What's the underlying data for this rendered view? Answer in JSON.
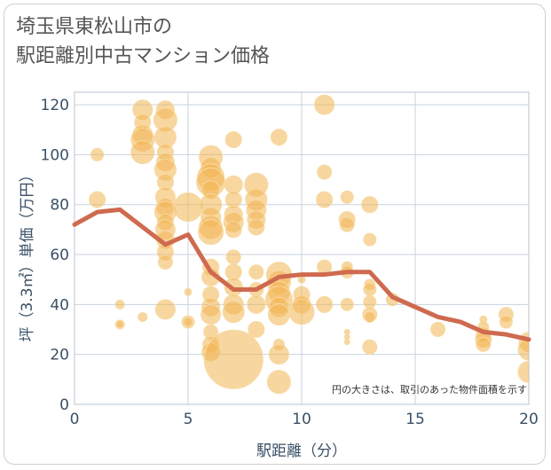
{
  "chart_data": {
    "type": "scatter",
    "title": [
      "埼玉県東松山市の",
      "駅距離別中古マンション価格"
    ],
    "xlabel": "駅距離（分）",
    "ylabel": "坪（3.3㎡）単価（万円）",
    "xlim": [
      0,
      20
    ],
    "ylim": [
      0,
      125
    ],
    "xticks": [
      0,
      5,
      10,
      15,
      20
    ],
    "yticks": [
      0,
      20,
      40,
      60,
      80,
      100,
      120
    ],
    "grid": true,
    "note": "円の大きさは、取引のあった物件面積を示す",
    "colors": {
      "bubble": "#f2b552",
      "bubble_edge": "#f7d9a0",
      "line": "#cf6a4f",
      "grid": "#c8d3de",
      "axis_text": "#3a5066"
    },
    "line_series": {
      "x": [
        0,
        1,
        2,
        3,
        4,
        5,
        6,
        7,
        8,
        9,
        10,
        11,
        12,
        13,
        14,
        15,
        16,
        17,
        18,
        19,
        20
      ],
      "y": [
        72,
        77,
        78,
        71,
        64,
        68,
        53,
        46,
        46,
        51,
        52,
        52,
        53,
        53,
        43,
        39,
        35,
        33,
        29,
        28,
        26
      ]
    },
    "bubbles": [
      {
        "x": 1,
        "y": 100,
        "s": 7
      },
      {
        "x": 1,
        "y": 82,
        "s": 9
      },
      {
        "x": 2,
        "y": 40,
        "s": 5
      },
      {
        "x": 2,
        "y": 32,
        "s": 5
      },
      {
        "x": 2,
        "y": 32,
        "s": 4
      },
      {
        "x": 3,
        "y": 118,
        "s": 11
      },
      {
        "x": 3,
        "y": 113,
        "s": 9
      },
      {
        "x": 3,
        "y": 108,
        "s": 11
      },
      {
        "x": 3,
        "y": 106,
        "s": 13
      },
      {
        "x": 3,
        "y": 101,
        "s": 13
      },
      {
        "x": 3,
        "y": 35,
        "s": 5
      },
      {
        "x": 4,
        "y": 118,
        "s": 10
      },
      {
        "x": 4,
        "y": 114,
        "s": 13
      },
      {
        "x": 4,
        "y": 107,
        "s": 12
      },
      {
        "x": 4,
        "y": 101,
        "s": 9
      },
      {
        "x": 4,
        "y": 97,
        "s": 10
      },
      {
        "x": 4,
        "y": 94,
        "s": 12
      },
      {
        "x": 4,
        "y": 89,
        "s": 9
      },
      {
        "x": 4,
        "y": 83,
        "s": 11
      },
      {
        "x": 4,
        "y": 79,
        "s": 10
      },
      {
        "x": 4,
        "y": 77,
        "s": 12
      },
      {
        "x": 4,
        "y": 73,
        "s": 9
      },
      {
        "x": 4,
        "y": 70,
        "s": 11
      },
      {
        "x": 4,
        "y": 66,
        "s": 10
      },
      {
        "x": 4,
        "y": 61,
        "s": 9
      },
      {
        "x": 4,
        "y": 57,
        "s": 8
      },
      {
        "x": 4,
        "y": 38,
        "s": 11
      },
      {
        "x": 5,
        "y": 79,
        "s": 16
      },
      {
        "x": 5,
        "y": 45,
        "s": 4
      },
      {
        "x": 5,
        "y": 33,
        "s": 7
      },
      {
        "x": 5,
        "y": 33,
        "s": 5
      },
      {
        "x": 6,
        "y": 99,
        "s": 13
      },
      {
        "x": 6,
        "y": 95,
        "s": 11
      },
      {
        "x": 6,
        "y": 91,
        "s": 15
      },
      {
        "x": 6,
        "y": 89,
        "s": 16
      },
      {
        "x": 6,
        "y": 86,
        "s": 10
      },
      {
        "x": 6,
        "y": 80,
        "s": 12
      },
      {
        "x": 6,
        "y": 75,
        "s": 11
      },
      {
        "x": 6,
        "y": 71,
        "s": 13
      },
      {
        "x": 6,
        "y": 69,
        "s": 14
      },
      {
        "x": 6,
        "y": 55,
        "s": 9
      },
      {
        "x": 6,
        "y": 51,
        "s": 10
      },
      {
        "x": 6,
        "y": 44,
        "s": 9
      },
      {
        "x": 6,
        "y": 39,
        "s": 10
      },
      {
        "x": 6,
        "y": 36,
        "s": 11
      },
      {
        "x": 6,
        "y": 29,
        "s": 8
      },
      {
        "x": 6,
        "y": 24,
        "s": 9
      },
      {
        "x": 6,
        "y": 21,
        "s": 10
      },
      {
        "x": 7,
        "y": 106,
        "s": 9
      },
      {
        "x": 7,
        "y": 88,
        "s": 10
      },
      {
        "x": 7,
        "y": 82,
        "s": 9
      },
      {
        "x": 7,
        "y": 76,
        "s": 10
      },
      {
        "x": 7,
        "y": 73,
        "s": 11
      },
      {
        "x": 7,
        "y": 70,
        "s": 9
      },
      {
        "x": 7,
        "y": 59,
        "s": 8
      },
      {
        "x": 7,
        "y": 53,
        "s": 9
      },
      {
        "x": 7,
        "y": 47,
        "s": 10
      },
      {
        "x": 7,
        "y": 40,
        "s": 11
      },
      {
        "x": 7,
        "y": 37,
        "s": 12
      },
      {
        "x": 7,
        "y": 18,
        "s": 33
      },
      {
        "x": 8,
        "y": 88,
        "s": 13
      },
      {
        "x": 8,
        "y": 82,
        "s": 12
      },
      {
        "x": 8,
        "y": 78,
        "s": 11
      },
      {
        "x": 8,
        "y": 74,
        "s": 10
      },
      {
        "x": 8,
        "y": 71,
        "s": 9
      },
      {
        "x": 8,
        "y": 53,
        "s": 8
      },
      {
        "x": 8,
        "y": 46,
        "s": 8
      },
      {
        "x": 8,
        "y": 40,
        "s": 10
      },
      {
        "x": 8,
        "y": 30,
        "s": 9
      },
      {
        "x": 9,
        "y": 107,
        "s": 9
      },
      {
        "x": 9,
        "y": 52,
        "s": 14
      },
      {
        "x": 9,
        "y": 49,
        "s": 13
      },
      {
        "x": 9,
        "y": 45,
        "s": 12
      },
      {
        "x": 9,
        "y": 42,
        "s": 15
      },
      {
        "x": 9,
        "y": 39,
        "s": 11
      },
      {
        "x": 9,
        "y": 36,
        "s": 12
      },
      {
        "x": 9,
        "y": 24,
        "s": 6
      },
      {
        "x": 9,
        "y": 20,
        "s": 11
      },
      {
        "x": 9,
        "y": 9,
        "s": 13
      },
      {
        "x": 10,
        "y": 50,
        "s": 4
      },
      {
        "x": 10,
        "y": 44,
        "s": 9
      },
      {
        "x": 10,
        "y": 40,
        "s": 10
      },
      {
        "x": 10,
        "y": 37,
        "s": 14
      },
      {
        "x": 11,
        "y": 120,
        "s": 11
      },
      {
        "x": 11,
        "y": 93,
        "s": 8
      },
      {
        "x": 11,
        "y": 82,
        "s": 9
      },
      {
        "x": 11,
        "y": 55,
        "s": 8
      },
      {
        "x": 11,
        "y": 40,
        "s": 9
      },
      {
        "x": 12,
        "y": 83,
        "s": 7
      },
      {
        "x": 12,
        "y": 74,
        "s": 9
      },
      {
        "x": 12,
        "y": 72,
        "s": 8
      },
      {
        "x": 12,
        "y": 55,
        "s": 6
      },
      {
        "x": 12,
        "y": 53,
        "s": 7
      },
      {
        "x": 12,
        "y": 40,
        "s": 7
      },
      {
        "x": 12,
        "y": 29,
        "s": 3
      },
      {
        "x": 12,
        "y": 27,
        "s": 3
      },
      {
        "x": 12,
        "y": 25,
        "s": 3
      },
      {
        "x": 13,
        "y": 80,
        "s": 9
      },
      {
        "x": 13,
        "y": 66,
        "s": 7
      },
      {
        "x": 13,
        "y": 48,
        "s": 6
      },
      {
        "x": 13,
        "y": 46,
        "s": 7
      },
      {
        "x": 13,
        "y": 41,
        "s": 7
      },
      {
        "x": 13,
        "y": 36,
        "s": 8
      },
      {
        "x": 13,
        "y": 35,
        "s": 6
      },
      {
        "x": 13,
        "y": 23,
        "s": 8
      },
      {
        "x": 14,
        "y": 42,
        "s": 7
      },
      {
        "x": 16,
        "y": 30,
        "s": 8
      },
      {
        "x": 18,
        "y": 34,
        "s": 4
      },
      {
        "x": 18,
        "y": 31,
        "s": 6
      },
      {
        "x": 18,
        "y": 28,
        "s": 8
      },
      {
        "x": 18,
        "y": 26,
        "s": 9
      },
      {
        "x": 18,
        "y": 24,
        "s": 8
      },
      {
        "x": 19,
        "y": 36,
        "s": 8
      },
      {
        "x": 19,
        "y": 33,
        "s": 7
      },
      {
        "x": 20,
        "y": 25,
        "s": 11
      },
      {
        "x": 20,
        "y": 22,
        "s": 12
      },
      {
        "x": 20,
        "y": 13,
        "s": 12
      }
    ]
  }
}
